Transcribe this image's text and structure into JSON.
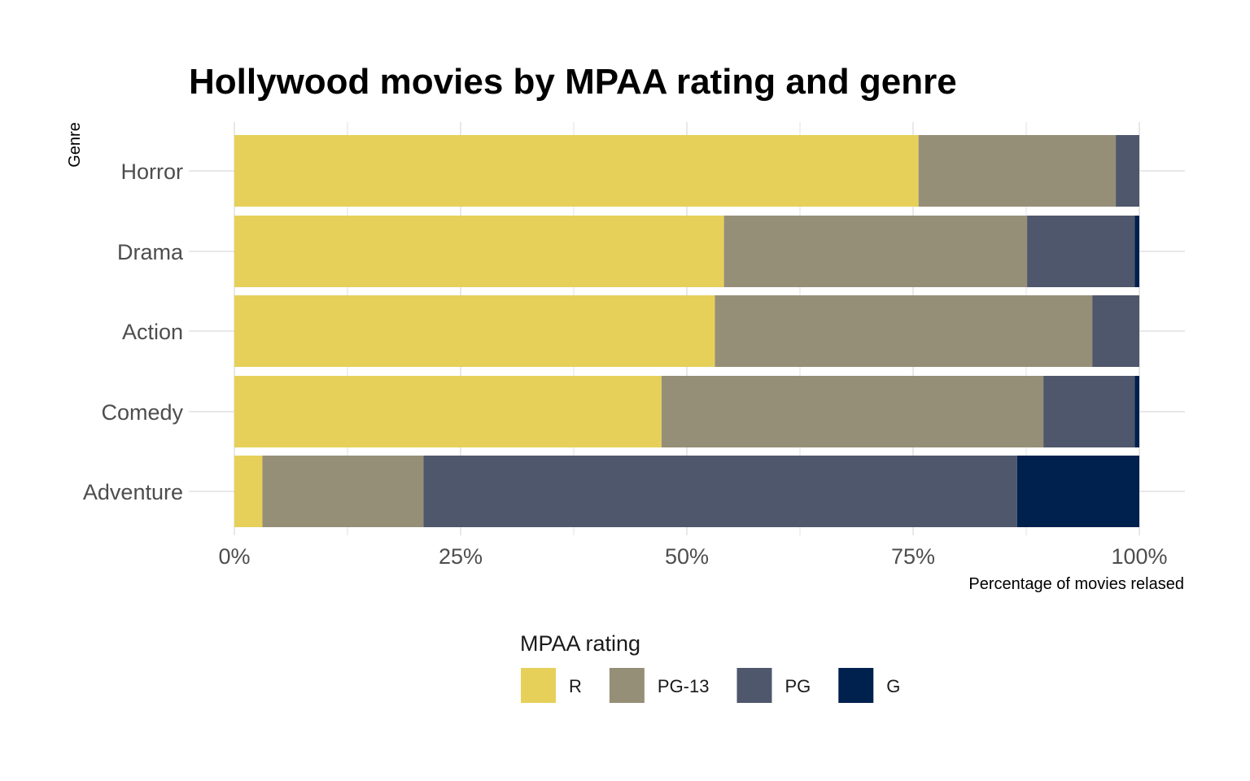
{
  "chart_data": {
    "type": "bar",
    "orientation": "horizontal",
    "stacked": "percent",
    "title": "Hollywood movies by MPAA rating and genre",
    "xlabel": "Percentage of movies relased",
    "ylabel": "Genre",
    "xlim": [
      0,
      100
    ],
    "x_ticks": [
      "0%",
      "25%",
      "50%",
      "75%",
      "100%"
    ],
    "categories": [
      "Adventure",
      "Comedy",
      "Action",
      "Drama",
      "Horror"
    ],
    "series": [
      {
        "name": "R",
        "color": "#e6d05a",
        "values": [
          3.1,
          47.2,
          53.1,
          54.1,
          75.6
        ]
      },
      {
        "name": "PG-13",
        "color": "#968f77",
        "values": [
          17.8,
          42.2,
          41.7,
          33.5,
          21.8
        ]
      },
      {
        "name": "PG",
        "color": "#4f576c",
        "values": [
          65.6,
          10.1,
          5.2,
          11.9,
          2.6
        ]
      },
      {
        "name": "G",
        "color": "#00204e",
        "values": [
          13.5,
          0.5,
          0.0,
          0.5,
          0.0
        ]
      }
    ],
    "legend": {
      "title": "MPAA rating",
      "position": "bottom"
    },
    "grid": true
  }
}
